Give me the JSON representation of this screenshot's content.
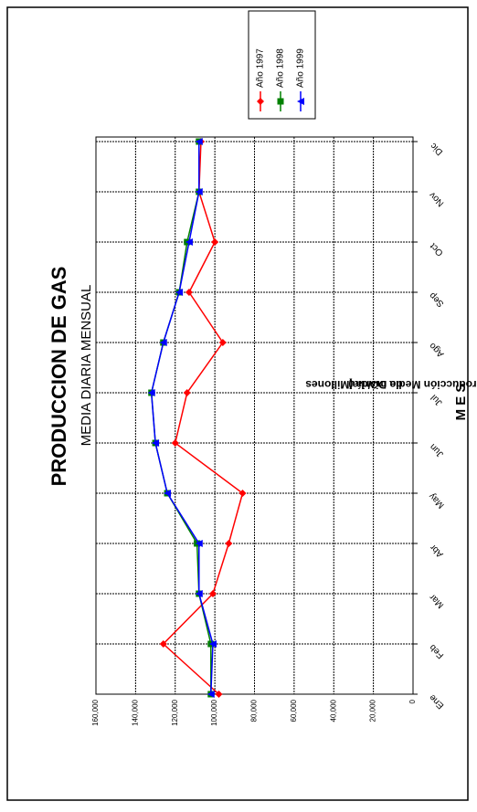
{
  "chart_data": {
    "type": "line",
    "title": "PRODUCCION DE GAS",
    "subtitle": "MEDIA DIARIA MENSUAL",
    "y_label": [
      "Producción Media Diaria (Millones",
      "de m3/día)"
    ],
    "x_label": "M E S",
    "categories": [
      "Ene",
      "Feb",
      "Mar",
      "Abr",
      "May",
      "Jun",
      "Jul",
      "Ago",
      "Sep",
      "Oct",
      "Nov",
      "Dic"
    ],
    "series": [
      {
        "name": "Año 1997",
        "color": "#ff0000",
        "marker": "diamond",
        "values": [
          98000,
          126000,
          101000,
          93000,
          86000,
          120000,
          114000,
          96000,
          113000,
          100000,
          108000,
          107000
        ]
      },
      {
        "name": "Año 1998",
        "color": "#008000",
        "marker": "square",
        "values": [
          102000,
          102000,
          108000,
          109000,
          124000,
          130000,
          132000,
          126000,
          118000,
          114000,
          108000,
          108000
        ]
      },
      {
        "name": "Año 1999",
        "color": "#0000ff",
        "marker": "triangle",
        "values": [
          102000,
          101000,
          108000,
          108000,
          124000,
          130000,
          132000,
          126000,
          118000,
          113000,
          108000,
          108000
        ]
      }
    ],
    "ylim": [
      0,
      160000
    ],
    "yticks": [
      0,
      {
        "value": 20000,
        "label": "20,000"
      },
      {
        "value": 40000,
        "label": "40,000"
      },
      {
        "value": 60000,
        "label": "60,000"
      },
      {
        "value": 80000,
        "label": "80,000"
      },
      {
        "value": 100000,
        "label": "100,000"
      },
      {
        "value": 120000,
        "label": "120,000"
      },
      {
        "value": 140000,
        "label": "140,000"
      },
      {
        "value": 160000,
        "label": "160,000"
      }
    ],
    "grid": true
  }
}
